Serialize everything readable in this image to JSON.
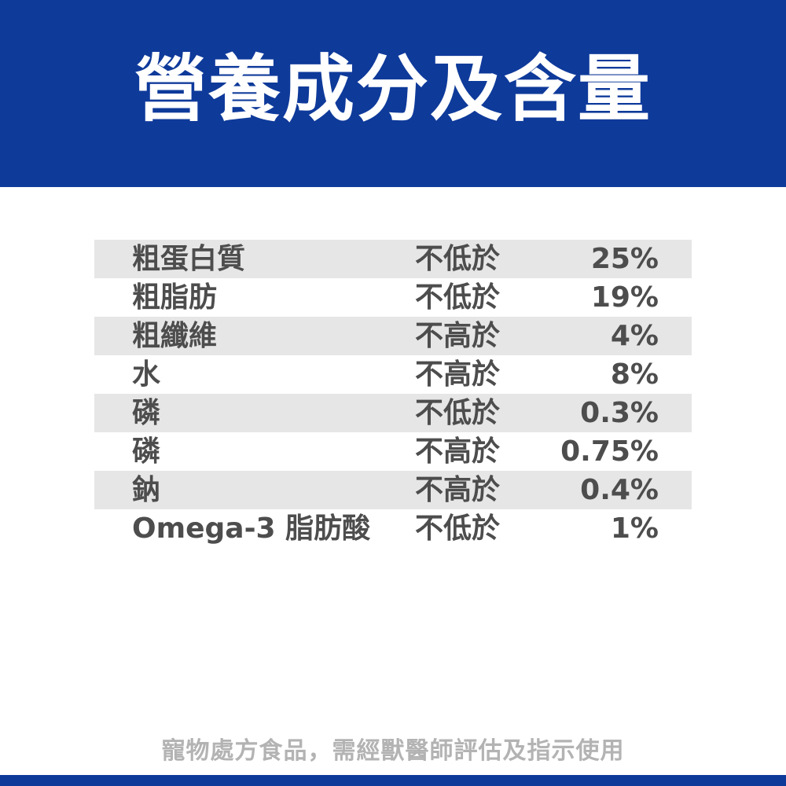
{
  "colors": {
    "brand_blue": "#0e3a9a",
    "row_shade": "#e6e6e6",
    "text_dark": "#4d4d4d",
    "text_light": "#b3b3b3"
  },
  "header": {
    "title": "營養成分及含量"
  },
  "nutrition": {
    "rows": [
      {
        "name": "粗蛋白質",
        "condition": "不低於",
        "value": "25%"
      },
      {
        "name": "粗脂肪",
        "condition": "不低於",
        "value": "19%"
      },
      {
        "name": "粗纖維",
        "condition": "不高於",
        "value": "4%"
      },
      {
        "name": "水",
        "condition": "不高於",
        "value": "8%"
      },
      {
        "name": "磷",
        "condition": "不低於",
        "value": "0.3%"
      },
      {
        "name": "磷",
        "condition": "不高於",
        "value": "0.75%"
      },
      {
        "name": "鈉",
        "condition": "不高於",
        "value": "0.4%"
      },
      {
        "name": "Omega-3 脂肪酸",
        "condition": "不低於",
        "value": "1%"
      }
    ]
  },
  "footer": {
    "note": "寵物處方食品，需經獸醫師評估及指示使用"
  }
}
